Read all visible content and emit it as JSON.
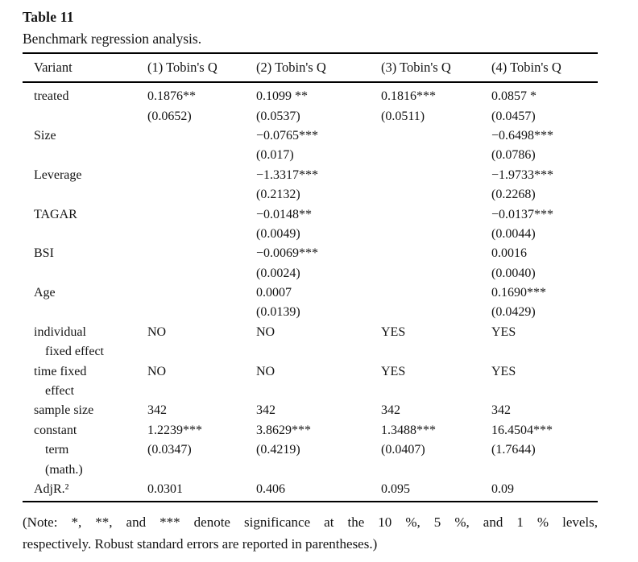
{
  "title": "Table 11",
  "caption": "Benchmark regression analysis.",
  "colors": {
    "text": "#141414",
    "background": "#ffffff",
    "rule": "#000000"
  },
  "table": {
    "columns": [
      "Variant",
      "(1) Tobin's Q",
      "(2) Tobin's Q",
      "(3) Tobin's Q",
      "(4) Tobin's Q"
    ],
    "rows": [
      {
        "label": "treated",
        "indent": false,
        "values": [
          "0.1876**",
          "0.1099 **",
          "0.1816***",
          "0.0857 *"
        ]
      },
      {
        "label": "",
        "indent": false,
        "values": [
          "(0.0652)",
          "(0.0537)",
          "(0.0511)",
          "(0.0457)"
        ]
      },
      {
        "label": "Size",
        "indent": false,
        "values": [
          "",
          "−0.0765***",
          "",
          "−0.6498***"
        ]
      },
      {
        "label": "",
        "indent": false,
        "values": [
          "",
          "(0.017)",
          "",
          "(0.0786)"
        ]
      },
      {
        "label": "Leverage",
        "indent": false,
        "values": [
          "",
          "−1.3317***",
          "",
          "−1.9733***"
        ]
      },
      {
        "label": "",
        "indent": false,
        "values": [
          "",
          "(0.2132)",
          "",
          "(0.2268)"
        ]
      },
      {
        "label": "TAGAR",
        "indent": false,
        "values": [
          "",
          "−0.0148**",
          "",
          "−0.0137***"
        ]
      },
      {
        "label": "",
        "indent": false,
        "values": [
          "",
          "(0.0049)",
          "",
          "(0.0044)"
        ]
      },
      {
        "label": "BSI",
        "indent": false,
        "values": [
          "",
          "−0.0069***",
          "",
          "0.0016"
        ]
      },
      {
        "label": "",
        "indent": false,
        "values": [
          "",
          "(0.0024)",
          "",
          "(0.0040)"
        ]
      },
      {
        "label": "Age",
        "indent": false,
        "values": [
          "",
          "0.0007",
          "",
          "0.1690***"
        ]
      },
      {
        "label": "",
        "indent": false,
        "values": [
          "",
          "(0.0139)",
          "",
          "(0.0429)"
        ]
      },
      {
        "label": "individual",
        "indent": false,
        "values": [
          "NO",
          "NO",
          "YES",
          "YES"
        ]
      },
      {
        "label": "fixed effect",
        "indent": true,
        "values": [
          "",
          "",
          "",
          ""
        ]
      },
      {
        "label": "time fixed",
        "indent": false,
        "values": [
          "NO",
          "NO",
          "YES",
          "YES"
        ]
      },
      {
        "label": "effect",
        "indent": true,
        "values": [
          "",
          "",
          "",
          ""
        ]
      },
      {
        "label": "sample size",
        "indent": false,
        "values": [
          "342",
          "342",
          "342",
          "342"
        ]
      },
      {
        "label": "constant",
        "indent": false,
        "values": [
          "1.2239***",
          "3.8629***",
          "1.3488***",
          "16.4504***"
        ]
      },
      {
        "label": "term",
        "indent": true,
        "values": [
          "(0.0347)",
          "(0.4219)",
          "(0.0407)",
          "(1.7644)"
        ]
      },
      {
        "label": "(math.)",
        "indent": true,
        "values": [
          "",
          "",
          "",
          ""
        ]
      },
      {
        "label": "AdjR.²",
        "indent": false,
        "values": [
          "0.0301",
          "0.406",
          "0.095",
          "0.09"
        ]
      }
    ]
  },
  "note_lines": [
    "(Note: *, **, and *** denote significance at the 10 %, 5 %, and 1 % levels,",
    "respectively. Robust standard errors are reported in parentheses.)"
  ]
}
